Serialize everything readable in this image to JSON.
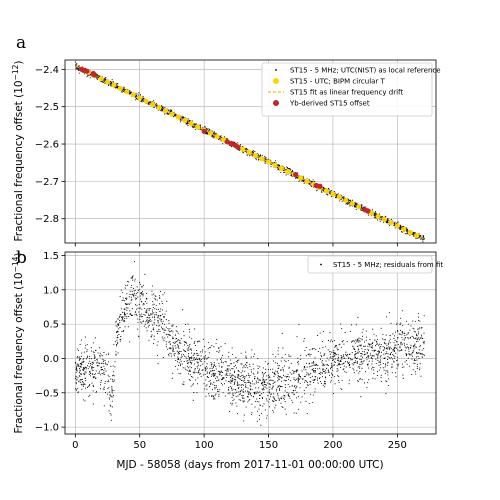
{
  "chart_data": [
    {
      "panel": "a",
      "type": "scatter",
      "xlim": [
        -8,
        280
      ],
      "ylim": [
        -2.865,
        -2.375
      ],
      "ylabel": "Fractional frequency offset (10",
      "ylabel_exp": "−12",
      "ylabel_close": ")",
      "x_ticks": [
        0,
        50,
        100,
        150,
        200,
        250
      ],
      "y_ticks": [
        -2.4,
        -2.5,
        -2.6,
        -2.7,
        -2.8
      ],
      "y_tick_labels": [
        "−2.4",
        "−2.5",
        "−2.6",
        "−2.7",
        "−2.8"
      ],
      "grid": true,
      "legend_position": "top-right",
      "series": [
        {
          "name": "ST15 - 5 MHz; UTC(NIST) as local reference",
          "kind": "dots",
          "color": "#000000",
          "x_range": [
            0,
            271
          ],
          "intercept": -2.391,
          "slope": -0.0017134,
          "noise_sd": 0.004
        },
        {
          "name": "ST15 - UTC; BIPM circular T",
          "kind": "markers",
          "color": "#ffd700",
          "x": [
            5,
            10,
            15,
            20,
            25,
            30,
            35,
            40,
            45,
            50,
            55,
            60,
            65,
            70,
            75,
            80,
            85,
            90,
            95,
            100,
            105,
            110,
            115,
            120,
            125,
            130,
            135,
            140,
            145,
            150,
            155,
            160,
            165,
            170,
            175,
            180,
            185,
            190,
            195,
            200,
            205,
            210,
            215,
            220,
            225,
            230,
            235,
            240,
            245,
            250,
            255,
            260,
            265
          ],
          "y": [
            -2.399,
            -2.408,
            -2.417,
            -2.425,
            -2.434,
            -2.442,
            -2.451,
            -2.46,
            -2.468,
            -2.477,
            -2.485,
            -2.494,
            -2.502,
            -2.511,
            -2.52,
            -2.528,
            -2.537,
            -2.545,
            -2.554,
            -2.563,
            -2.571,
            -2.58,
            -2.588,
            -2.597,
            -2.605,
            -2.614,
            -2.622,
            -2.631,
            -2.64,
            -2.648,
            -2.657,
            -2.665,
            -2.674,
            -2.682,
            -2.691,
            -2.7,
            -2.708,
            -2.717,
            -2.725,
            -2.734,
            -2.742,
            -2.751,
            -2.759,
            -2.768,
            -2.777,
            -2.785,
            -2.794,
            -2.802,
            -2.811,
            -2.819,
            -2.828,
            -2.837,
            -2.845
          ]
        },
        {
          "name": "ST15 fit as linear frequency drift",
          "kind": "dashed-line",
          "color": "#f5c400",
          "x": [
            0,
            271
          ],
          "y": [
            -2.391,
            -2.855
          ]
        },
        {
          "name": "Yb-derived ST15 offset",
          "kind": "markers",
          "color": "#c0262d",
          "x": [
            5,
            7,
            9,
            14,
            15,
            100,
            118,
            121,
            124,
            126,
            171,
            187,
            190,
            225,
            227
          ],
          "y": [
            -2.4,
            -2.403,
            -2.405,
            -2.411,
            -2.415,
            -2.566,
            -2.594,
            -2.599,
            -2.603,
            -2.608,
            -2.682,
            -2.711,
            -2.713,
            -2.776,
            -2.779
          ]
        }
      ]
    },
    {
      "panel": "b",
      "type": "scatter",
      "xlim": [
        -8,
        280
      ],
      "ylim": [
        -1.1,
        1.55
      ],
      "xlabel": "MJD - 58058 (days from 2017-11-01 00:00:00 UTC)",
      "ylabel": "Fractional frequency offset (10",
      "ylabel_exp": "−14",
      "ylabel_close": ")",
      "x_ticks": [
        0,
        50,
        100,
        150,
        200,
        250
      ],
      "y_ticks": [
        1.5,
        1.0,
        0.5,
        0.0,
        -0.5,
        -1.0
      ],
      "y_tick_labels": [
        "1.5",
        "1.0",
        "0.5",
        "0.0",
        "−0.5",
        "−1.0"
      ],
      "grid": true,
      "legend_position": "top-right",
      "series": [
        {
          "name": "ST15 - 5 MHz; residuals from fit",
          "kind": "dots",
          "color": "#000000",
          "x_range": [
            0,
            271
          ],
          "trend_x": [
            0,
            10,
            20,
            25,
            28,
            32,
            36,
            40,
            45,
            50,
            55,
            60,
            65,
            70,
            75,
            80,
            90,
            100,
            110,
            120,
            130,
            140,
            150,
            155,
            160,
            170,
            180,
            190,
            200,
            210,
            220,
            230,
            240,
            250,
            260,
            271
          ],
          "trend_y": [
            -0.2,
            -0.15,
            -0.15,
            -0.25,
            -0.6,
            0.3,
            0.6,
            0.8,
            0.95,
            0.8,
            0.65,
            0.6,
            0.6,
            0.45,
            0.25,
            0.1,
            -0.05,
            -0.15,
            -0.25,
            -0.3,
            -0.35,
            -0.4,
            -0.45,
            -0.4,
            -0.35,
            -0.3,
            -0.2,
            -0.15,
            -0.05,
            0.0,
            0.05,
            0.05,
            0.1,
            0.15,
            0.2,
            0.2
          ],
          "noise_sd": 0.2
        }
      ]
    }
  ],
  "panel_letters": {
    "a": "a",
    "b": "b"
  },
  "x_tick_labels": [
    "0",
    "50",
    "100",
    "150",
    "200",
    "250"
  ],
  "legend_a": [
    "ST15 - 5 MHz; UTC(NIST) as local reference",
    "ST15 - UTC; BIPM circular T",
    "ST15 fit as linear frequency drift",
    "Yb-derived ST15 offset"
  ],
  "legend_b": [
    "ST15 - 5 MHz; residuals from fit"
  ]
}
